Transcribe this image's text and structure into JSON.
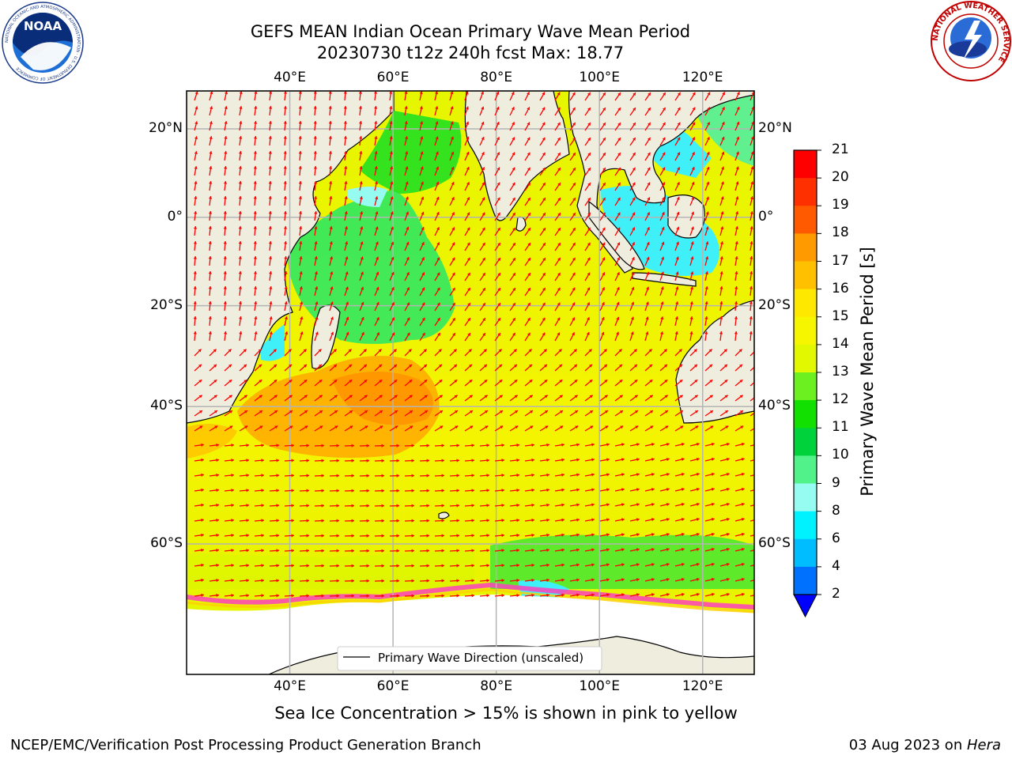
{
  "title": {
    "line1": "GEFS MEAN Indian Ocean Primary Wave Mean Period",
    "line2": "20230730 t12z 240h fcst   Max: 18.77"
  },
  "axes": {
    "lon_labels": [
      "40°E",
      "60°E",
      "80°E",
      "100°E",
      "120°E"
    ],
    "lat_labels": [
      "20°N",
      "0°",
      "20°S",
      "40°S",
      "60°S"
    ],
    "lon_range": [
      20,
      130
    ],
    "lat_range": [
      -72,
      28
    ]
  },
  "legend": {
    "label": "Primary Wave Direction (unscaled)"
  },
  "colorbar": {
    "title": "Primary Wave Mean Period [s]",
    "ticks": [
      "21",
      "20",
      "19",
      "18",
      "17",
      "16",
      "15",
      "14",
      "13",
      "12",
      "11",
      "10",
      "9",
      "8",
      "6",
      "4",
      "2"
    ],
    "colors": [
      "#ff0000",
      "#ff3000",
      "#ff5a00",
      "#ff7f00",
      "#ff9a00",
      "#ffc000",
      "#ffe800",
      "#f6f600",
      "#e2f800",
      "#c8fa00",
      "#6cf020",
      "#12e000",
      "#00d23c",
      "#52f28a",
      "#96fcf2",
      "#48fafc",
      "#00f2ff",
      "#00bdff",
      "#0070ff"
    ],
    "underflow_color": "#0000ff"
  },
  "note": "Sea Ice Concentration > 15% is shown in pink to yellow",
  "footer": {
    "left": "NCEP/EMC/Verification Post Processing Product Generation Branch",
    "right_prefix": "03 Aug 2023 on ",
    "right_host": "Hera"
  },
  "logos": {
    "noaa": {
      "text": "NOAA",
      "ring": "NATIONAL OCEANIC AND ATMOSPHERIC ADMINISTRATION · U.S. DEPARTMENT OF COMMERCE"
    },
    "nws": {
      "ring": "NATIONAL WEATHER SERVICE"
    }
  },
  "colors": {
    "arrow": "#ff0000",
    "land": "#efedde",
    "ice": "#ffffff",
    "grid": "#b4b4b4"
  }
}
